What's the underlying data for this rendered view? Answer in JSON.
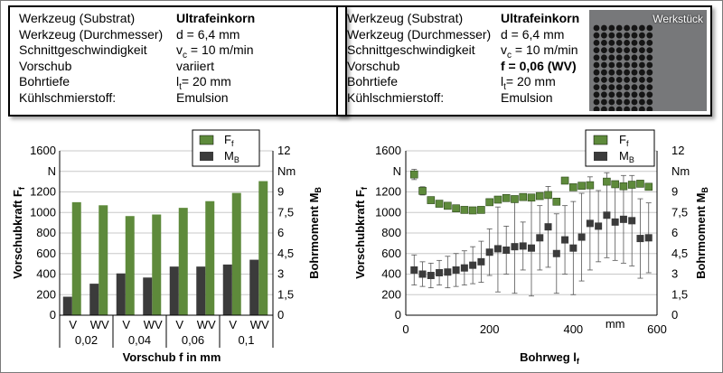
{
  "left_params": {
    "rows": [
      {
        "key": "Werkzeug (Substrat)",
        "value": "Ultrafeinkorn",
        "bold": true
      },
      {
        "key": "Werkzeug (Durchmesser)",
        "value": "d = 6,4 mm"
      },
      {
        "key": "Schnittgeschwindigkeit",
        "value_pre": "v",
        "value_sub": "c",
        "value_post": " = 10 m/min"
      },
      {
        "key": "Vorschub",
        "value": "variiert"
      },
      {
        "key": "Bohrtiefe",
        "value_pre": "l",
        "value_sub": "t",
        "value_post": "= 20 mm"
      },
      {
        "key": "Kühlschmierstoff:",
        "value": "Emulsion"
      }
    ]
  },
  "right_params": {
    "rows": [
      {
        "key": "Werkzeug (Substrat)",
        "value": "Ultrafeinkorn",
        "bold": true
      },
      {
        "key": "Werkzeug (Durchmesser)",
        "value": "d = 6,4 mm"
      },
      {
        "key": "Schnittgeschwindigkeit",
        "value_pre": "v",
        "value_sub": "c",
        "value_post": " = 10 m/min"
      },
      {
        "key": "Vorschub",
        "value": "f = 0,06 (WV)",
        "bold": true
      },
      {
        "key": "Bohrtiefe",
        "value_pre": "l",
        "value_sub": "t",
        "value_post": "= 20 mm"
      },
      {
        "key": "Kühlschmierstoff:",
        "value": "Emulsion"
      }
    ],
    "photo_label": "Werkstück"
  },
  "colors": {
    "force": "#5e8a3b",
    "moment": "#3b3b3b",
    "grid": "#c8c8c8"
  },
  "chart_data": [
    {
      "type": "bar",
      "xlabel": "Vorschub f in mm",
      "ylabel_left": {
        "main": "Vorschubkraft F",
        "sub": "f"
      },
      "ylabel_right": {
        "main": "Bohrmoment M",
        "sub": "B"
      },
      "unit_left": "N",
      "unit_right": "Nm",
      "ylim_left": [
        0,
        1600
      ],
      "ylim_right": [
        0,
        12
      ],
      "yticks_left": [
        "0",
        "200",
        "400",
        "600",
        "800",
        "1000",
        "1200",
        "1400",
        "1600"
      ],
      "yticks_right": [
        "0",
        "1,5",
        "3",
        "4,5",
        "6",
        "7,5",
        "9",
        "10,5",
        "12"
      ],
      "groups": [
        "0,02",
        "0,04",
        "0,06",
        "0,1"
      ],
      "categories": [
        "V",
        "WV",
        "V",
        "WV",
        "V",
        "WV",
        "V",
        "WV"
      ],
      "series": [
        {
          "name_main": "F",
          "name_sub": "f",
          "axis": "left",
          "values": [
            1100,
            1070,
            965,
            980,
            1045,
            1110,
            1190,
            1305
          ]
        },
        {
          "name_main": "M",
          "name_sub": "B",
          "axis": "right",
          "values": [
            1.35,
            2.3,
            3.05,
            2.75,
            3.55,
            3.55,
            3.7,
            4.05
          ]
        }
      ],
      "legend": "top-right",
      "grid": true
    },
    {
      "type": "scatter",
      "xlabel_main": "Bohrweg l",
      "xlabel_sub": "f",
      "x_unit": "mm",
      "ylabel_left": {
        "main": "Vorschubkraft F",
        "sub": "f"
      },
      "ylabel_right": {
        "main": "Bohrmoment M",
        "sub": "B"
      },
      "unit_left": "N",
      "unit_right": "Nm",
      "xlim": [
        0,
        600
      ],
      "xticks": [
        "0",
        "200",
        "400",
        "600"
      ],
      "ylim_left": [
        0,
        1600
      ],
      "ylim_right": [
        0,
        12
      ],
      "yticks_left": [
        "0",
        "200",
        "400",
        "600",
        "800",
        "1000",
        "1200",
        "1400",
        "1600"
      ],
      "yticks_right": [
        "0",
        "1,5",
        "3",
        "4,5",
        "6",
        "7,5",
        "9",
        "10,5",
        "12"
      ],
      "legend": "top-right",
      "grid": true,
      "series": [
        {
          "name_main": "F",
          "name_sub": "f",
          "axis": "left",
          "points": [
            {
              "x": 20,
              "y": 1370,
              "lo": 1320,
              "hi": 1420
            },
            {
              "x": 40,
              "y": 1210,
              "lo": 1170,
              "hi": 1250
            },
            {
              "x": 60,
              "y": 1120,
              "lo": 1090,
              "hi": 1150
            },
            {
              "x": 80,
              "y": 1085,
              "lo": 1060,
              "hi": 1110
            },
            {
              "x": 100,
              "y": 1065,
              "lo": 1040,
              "hi": 1090
            },
            {
              "x": 120,
              "y": 1040,
              "lo": 1015,
              "hi": 1065
            },
            {
              "x": 140,
              "y": 1025,
              "lo": 1000,
              "hi": 1050
            },
            {
              "x": 160,
              "y": 1020,
              "lo": 995,
              "hi": 1045
            },
            {
              "x": 180,
              "y": 1025,
              "lo": 1000,
              "hi": 1050
            },
            {
              "x": 200,
              "y": 1100,
              "lo": 1070,
              "hi": 1130
            },
            {
              "x": 220,
              "y": 1125,
              "lo": 1095,
              "hi": 1155
            },
            {
              "x": 240,
              "y": 1140,
              "lo": 1110,
              "hi": 1170
            },
            {
              "x": 260,
              "y": 1130,
              "lo": 1100,
              "hi": 1160
            },
            {
              "x": 280,
              "y": 1150,
              "lo": 1120,
              "hi": 1180
            },
            {
              "x": 300,
              "y": 1145,
              "lo": 1115,
              "hi": 1175
            },
            {
              "x": 320,
              "y": 1160,
              "lo": 1130,
              "hi": 1190
            },
            {
              "x": 340,
              "y": 1170,
              "lo": 1140,
              "hi": 1200
            },
            {
              "x": 360,
              "y": 1105,
              "lo": 1075,
              "hi": 1135
            },
            {
              "x": 380,
              "y": 1310,
              "lo": 1280,
              "hi": 1340
            },
            {
              "x": 400,
              "y": 1245,
              "lo": 1215,
              "hi": 1275
            },
            {
              "x": 420,
              "y": 1260,
              "lo": 1230,
              "hi": 1290
            },
            {
              "x": 440,
              "y": 1265,
              "lo": 1235,
              "hi": 1295
            },
            {
              "x": 480,
              "y": 1300,
              "lo": 1270,
              "hi": 1330
            },
            {
              "x": 500,
              "y": 1275,
              "lo": 1245,
              "hi": 1305
            },
            {
              "x": 520,
              "y": 1255,
              "lo": 1225,
              "hi": 1285
            },
            {
              "x": 540,
              "y": 1270,
              "lo": 1240,
              "hi": 1300
            },
            {
              "x": 560,
              "y": 1280,
              "lo": 1250,
              "hi": 1310
            },
            {
              "x": 580,
              "y": 1250,
              "lo": 1220,
              "hi": 1280
            }
          ]
        },
        {
          "name_main": "M",
          "name_sub": "B",
          "axis": "right",
          "points": [
            {
              "x": 20,
              "y": 3.3,
              "lo": 2.2,
              "hi": 4.4
            },
            {
              "x": 40,
              "y": 3.0,
              "lo": 2.1,
              "hi": 3.9
            },
            {
              "x": 60,
              "y": 2.9,
              "lo": 2.0,
              "hi": 3.8
            },
            {
              "x": 80,
              "y": 3.1,
              "lo": 2.2,
              "hi": 4.0
            },
            {
              "x": 100,
              "y": 3.15,
              "lo": 2.0,
              "hi": 4.3
            },
            {
              "x": 120,
              "y": 3.3,
              "lo": 2.1,
              "hi": 4.5
            },
            {
              "x": 140,
              "y": 3.45,
              "lo": 2.2,
              "hi": 4.7
            },
            {
              "x": 160,
              "y": 3.65,
              "lo": 2.3,
              "hi": 5.0
            },
            {
              "x": 180,
              "y": 3.9,
              "lo": 2.4,
              "hi": 5.4
            },
            {
              "x": 200,
              "y": 4.6,
              "lo": 2.9,
              "hi": 6.3
            },
            {
              "x": 220,
              "y": 4.85,
              "lo": 1.7,
              "hi": 7.9
            },
            {
              "x": 240,
              "y": 4.75,
              "lo": 3.0,
              "hi": 6.5
            },
            {
              "x": 260,
              "y": 5.0,
              "lo": 1.6,
              "hi": 8.3
            },
            {
              "x": 280,
              "y": 5.05,
              "lo": 3.3,
              "hi": 6.8
            },
            {
              "x": 300,
              "y": 4.9,
              "lo": 1.4,
              "hi": 8.4
            },
            {
              "x": 320,
              "y": 5.65,
              "lo": 3.3,
              "hi": 8.0
            },
            {
              "x": 340,
              "y": 6.45,
              "lo": 3.5,
              "hi": 9.4
            },
            {
              "x": 360,
              "y": 4.5,
              "lo": 1.6,
              "hi": 7.4
            },
            {
              "x": 380,
              "y": 5.5,
              "lo": 3.0,
              "hi": 8.0
            },
            {
              "x": 400,
              "y": 4.9,
              "lo": 1.5,
              "hi": 8.3
            },
            {
              "x": 420,
              "y": 5.7,
              "lo": 2.5,
              "hi": 8.9
            },
            {
              "x": 440,
              "y": 6.7,
              "lo": 3.3,
              "hi": 10.1
            },
            {
              "x": 460,
              "y": 6.5,
              "lo": 3.9,
              "hi": 9.1
            },
            {
              "x": 480,
              "y": 7.3,
              "lo": 4.2,
              "hi": 10.4
            },
            {
              "x": 500,
              "y": 6.8,
              "lo": 4.0,
              "hi": 9.6
            },
            {
              "x": 520,
              "y": 7.0,
              "lo": 3.8,
              "hi": 10.2
            },
            {
              "x": 540,
              "y": 6.9,
              "lo": 3.6,
              "hi": 10.2
            },
            {
              "x": 560,
              "y": 5.6,
              "lo": 2.7,
              "hi": 8.5
            },
            {
              "x": 580,
              "y": 5.65,
              "lo": 3.1,
              "hi": 8.2
            }
          ]
        }
      ]
    }
  ]
}
